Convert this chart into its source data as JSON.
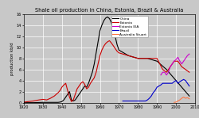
{
  "title": "Shale oil production in China, Estonia, Brazil & Australia",
  "xlabel_ticks": [
    1920,
    1930,
    1940,
    1950,
    1960,
    1970,
    1980,
    1990,
    2000,
    2010
  ],
  "ylabel": "production kb/d",
  "ylim": [
    0,
    16
  ],
  "yticks": [
    0,
    2,
    4,
    6,
    8,
    10,
    12,
    14,
    16
  ],
  "xlim": [
    1920,
    2010
  ],
  "china_x": [
    1920,
    1925,
    1930,
    1932,
    1934,
    1936,
    1938,
    1939,
    1940,
    1941,
    1942,
    1943,
    1944,
    1945,
    1946,
    1947,
    1948,
    1949,
    1950,
    1951,
    1952,
    1953,
    1954,
    1955,
    1956,
    1957,
    1958,
    1959,
    1960,
    1961,
    1962,
    1963,
    1964,
    1965,
    1966,
    1967,
    1968,
    1969,
    1970,
    1975,
    1980,
    1985,
    1990,
    1995,
    2000,
    2005,
    2007
  ],
  "china_y": [
    0.0,
    0.0,
    0.05,
    0.05,
    0.05,
    0.05,
    0.05,
    0.1,
    0.2,
    0.5,
    1.0,
    1.5,
    2.0,
    0.5,
    0.3,
    0.5,
    1.0,
    1.5,
    2.0,
    2.5,
    3.0,
    2.8,
    3.5,
    4.5,
    5.5,
    7.0,
    9.0,
    11.0,
    13.0,
    14.0,
    14.8,
    15.3,
    15.5,
    15.2,
    14.5,
    13.5,
    12.0,
    10.5,
    9.5,
    8.5,
    8.0,
    8.0,
    7.5,
    6.0,
    4.0,
    2.0,
    1.2
  ],
  "estonia_x": [
    1920,
    1925,
    1928,
    1930,
    1932,
    1934,
    1936,
    1938,
    1939,
    1940,
    1941,
    1942,
    1943,
    1944,
    1945,
    1946,
    1947,
    1948,
    1949,
    1950,
    1951,
    1952,
    1953,
    1954,
    1955,
    1956,
    1957,
    1958,
    1959,
    1960,
    1961,
    1962,
    1963,
    1964,
    1965,
    1966,
    1967,
    1968,
    1969,
    1970,
    1975,
    1980,
    1985,
    1990,
    1993,
    1995,
    1997,
    1999,
    2001,
    2003,
    2005,
    2007
  ],
  "estonia_y": [
    0.1,
    0.3,
    0.5,
    0.6,
    0.5,
    0.8,
    1.2,
    1.8,
    2.2,
    2.8,
    3.2,
    3.5,
    2.2,
    1.0,
    0.2,
    0.5,
    1.5,
    2.5,
    3.0,
    3.5,
    3.8,
    3.3,
    2.5,
    2.8,
    3.5,
    4.0,
    4.5,
    5.5,
    7.0,
    8.5,
    9.5,
    10.2,
    10.7,
    11.0,
    11.2,
    10.8,
    10.3,
    9.8,
    9.3,
    9.0,
    8.5,
    8.0,
    8.0,
    8.0,
    6.0,
    5.5,
    6.5,
    7.5,
    7.5,
    6.5,
    6.0,
    5.5
  ],
  "estonia_eia_x": [
    1992,
    1993,
    1994,
    1995,
    1996,
    1997,
    1998,
    1999,
    2000,
    2001,
    2002,
    2003,
    2004,
    2005,
    2006,
    2007
  ],
  "estonia_eia_y": [
    5.0,
    5.5,
    5.5,
    5.0,
    5.5,
    6.5,
    7.0,
    7.5,
    7.8,
    8.2,
    7.5,
    7.0,
    7.5,
    8.0,
    8.5,
    8.8
  ],
  "brazil_x": [
    1972,
    1975,
    1978,
    1980,
    1982,
    1984,
    1985,
    1986,
    1987,
    1988,
    1989,
    1990,
    1991,
    1992,
    1993,
    1994,
    1995,
    1996,
    1997,
    1998,
    1999,
    2000,
    2001,
    2002,
    2003,
    2004,
    2005,
    2006,
    2007
  ],
  "brazil_y": [
    0.3,
    0.3,
    0.3,
    0.3,
    0.3,
    0.3,
    0.5,
    0.8,
    1.2,
    1.8,
    2.2,
    2.8,
    3.0,
    3.2,
    3.5,
    3.5,
    3.5,
    3.5,
    3.5,
    3.5,
    3.8,
    4.0,
    3.5,
    3.8,
    4.0,
    4.2,
    4.0,
    3.5,
    3.0
  ],
  "australia_x": [
    1999,
    2000,
    2001,
    2002,
    2003,
    2004,
    2005,
    2006,
    2007
  ],
  "australia_y": [
    0.05,
    0.1,
    0.3,
    0.5,
    0.8,
    1.0,
    0.8,
    0.9,
    0.7
  ],
  "china_color": "#000000",
  "estonia_color": "#cc0000",
  "estonia_eia_color": "#cc00cc",
  "brazil_color": "#0000cc",
  "australia_color": "#ff7744",
  "bg_color": "#c8c8c8",
  "plot_bg_color": "#c8c8c8",
  "grid_color": "#ffffff"
}
